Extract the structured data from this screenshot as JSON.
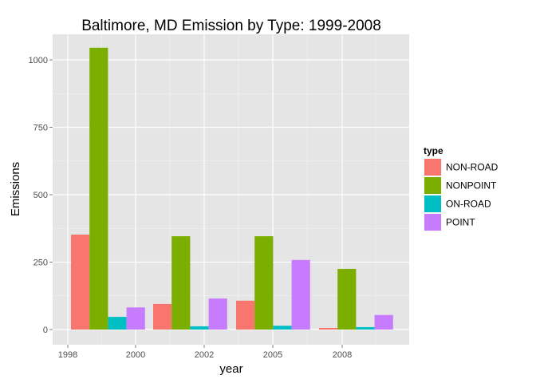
{
  "chart_data": {
    "type": "bar",
    "title": "Baltimore, MD Emission by Type: 1999-2008",
    "xlabel": "year",
    "ylabel": "Emissions",
    "x_ticks": [
      "1998",
      "2000",
      "2002",
      "2005",
      "2008"
    ],
    "y_ticks": [
      0,
      250,
      500,
      750,
      1000
    ],
    "ylim": [
      -55,
      1100
    ],
    "categories": [
      "1999",
      "2002",
      "2005",
      "2008"
    ],
    "legend_title": "type",
    "legend_position": "right",
    "grid": true,
    "series": [
      {
        "name": "NON-ROAD",
        "color": "#F8766D",
        "values": [
          352,
          95,
          107,
          6
        ]
      },
      {
        "name": "NONPOINT",
        "color": "#7CAE00",
        "values": [
          1045,
          346,
          346,
          225
        ]
      },
      {
        "name": "ON-ROAD",
        "color": "#00BFC4",
        "values": [
          47,
          12,
          14,
          9
        ]
      },
      {
        "name": "POINT",
        "color": "#C77CFF",
        "values": [
          82,
          115,
          258,
          54
        ]
      }
    ]
  }
}
